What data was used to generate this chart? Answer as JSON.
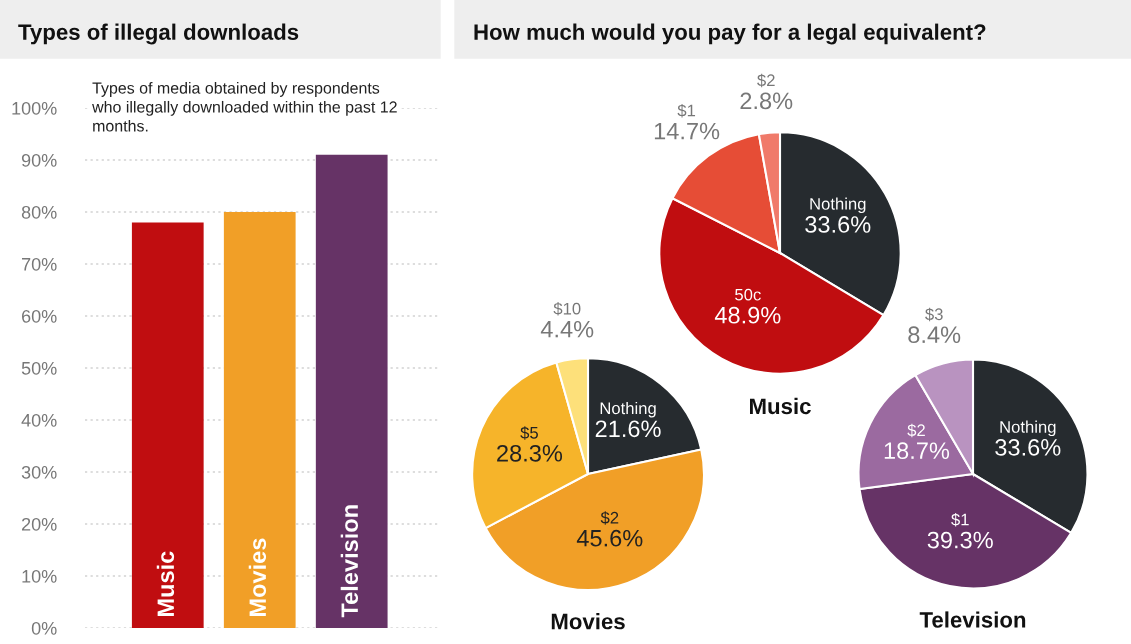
{
  "chart_data": [
    {
      "type": "bar",
      "title": "Types of illegal downloads",
      "categories": [
        "Music",
        "Movies",
        "Television"
      ],
      "values": [
        78,
        80,
        91
      ],
      "colors": [
        "#c00d10",
        "#f19f27",
        "#663366"
      ],
      "ylim": [
        0,
        100
      ],
      "yticks": [
        {
          "value": 0,
          "label": "0%"
        },
        {
          "value": 10,
          "label": "10%"
        },
        {
          "value": 20,
          "label": "20%"
        },
        {
          "value": 30,
          "label": "30%"
        },
        {
          "value": 40,
          "label": "40%"
        },
        {
          "value": 50,
          "label": "50%"
        },
        {
          "value": 60,
          "label": "60%"
        },
        {
          "value": 70,
          "label": "70%"
        },
        {
          "value": 80,
          "label": "80%"
        },
        {
          "value": 90,
          "label": "90%"
        },
        {
          "value": 100,
          "label": "100%"
        }
      ],
      "grid": "y",
      "annotations": [
        "Types of media obtained by respondents who illegally downloaded within the past 12 months."
      ]
    },
    {
      "type": "pie",
      "title": "How much would you pay for a legal equivalent?",
      "xlabel": "Music",
      "categories": [
        "Nothing",
        "50c",
        "$1",
        "$2"
      ],
      "values": [
        33.6,
        48.9,
        14.7,
        2.8
      ],
      "colors": [
        "#262b2f",
        "#c00d10",
        "#e64d36",
        "#f07a6a"
      ],
      "value_labels": [
        "33.6%",
        "48.9%",
        "14.7%",
        "2.8%"
      ]
    },
    {
      "type": "pie",
      "xlabel": "Movies",
      "categories": [
        "Nothing",
        "$2",
        "$5",
        "$10"
      ],
      "values": [
        21.6,
        45.6,
        28.3,
        4.4
      ],
      "colors": [
        "#262b2f",
        "#f19f27",
        "#f6b42a",
        "#fde07a"
      ],
      "value_labels": [
        "21.6%",
        "45.6%",
        "28.3%",
        "4.4%"
      ]
    },
    {
      "type": "pie",
      "xlabel": "Television",
      "categories": [
        "Nothing",
        "$1",
        "$2",
        "$3"
      ],
      "values": [
        33.6,
        39.3,
        18.7,
        8.4
      ],
      "colors": [
        "#262b2f",
        "#663366",
        "#9b6aa0",
        "#b993c0"
      ],
      "value_labels": [
        "33.6%",
        "39.3%",
        "18.7%",
        "8.4%"
      ]
    }
  ]
}
